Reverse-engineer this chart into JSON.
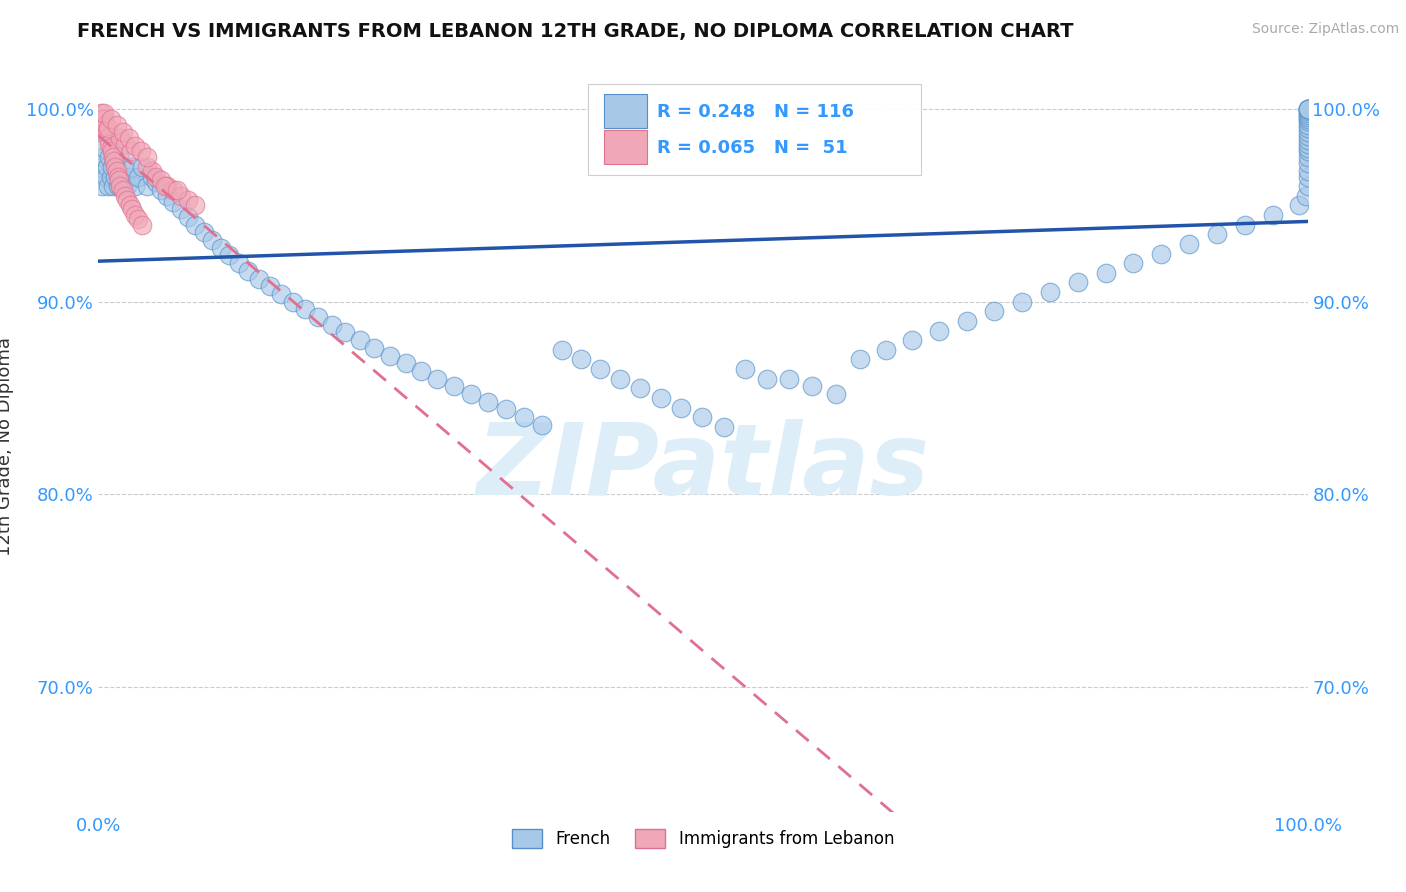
{
  "title": "FRENCH VS IMMIGRANTS FROM LEBANON 12TH GRADE, NO DIPLOMA CORRELATION CHART",
  "source": "Source: ZipAtlas.com",
  "ylabel": "12th Grade, No Diploma",
  "xlim": [
    0.0,
    1.0
  ],
  "ylim": [
    0.635,
    1.015
  ],
  "blue_R": 0.248,
  "blue_N": 116,
  "pink_R": 0.065,
  "pink_N": 51,
  "blue_color": "#a8c8e8",
  "pink_color": "#f0a8b8",
  "blue_edge_color": "#5590c8",
  "pink_edge_color": "#e07090",
  "blue_line_color": "#2255aa",
  "pink_line_color": "#e07090",
  "watermark_color": "#ddeef8",
  "legend_blue_label": "French",
  "legend_pink_label": "Immigrants from Lebanon",
  "blue_x": [
    0.002,
    0.003,
    0.004,
    0.005,
    0.006,
    0.007,
    0.008,
    0.009,
    0.01,
    0.011,
    0.012,
    0.013,
    0.014,
    0.015,
    0.016,
    0.017,
    0.018,
    0.02,
    0.022,
    0.024,
    0.026,
    0.028,
    0.03,
    0.033,
    0.036,
    0.04,
    0.044,
    0.048,
    0.052,
    0.057,
    0.062,
    0.068,
    0.074,
    0.08,
    0.087,
    0.094,
    0.101,
    0.108,
    0.116,
    0.124,
    0.133,
    0.142,
    0.151,
    0.161,
    0.171,
    0.182,
    0.193,
    0.204,
    0.216,
    0.228,
    0.241,
    0.254,
    0.267,
    0.28,
    0.294,
    0.308,
    0.322,
    0.337,
    0.352,
    0.367,
    0.383,
    0.399,
    0.415,
    0.431,
    0.448,
    0.465,
    0.482,
    0.499,
    0.517,
    0.535,
    0.553,
    0.571,
    0.59,
    0.61,
    0.63,
    0.651,
    0.673,
    0.695,
    0.718,
    0.741,
    0.764,
    0.787,
    0.81,
    0.833,
    0.856,
    0.879,
    0.902,
    0.925,
    0.948,
    0.971,
    0.993,
    0.999,
    1.0,
    1.0,
    1.0,
    1.0,
    1.0,
    1.0,
    1.0,
    1.0,
    1.0,
    1.0,
    1.0,
    1.0,
    1.0,
    1.0,
    1.0,
    1.0,
    1.0,
    1.0,
    1.0,
    1.0,
    1.0,
    1.0,
    1.0,
    1.0
  ],
  "blue_y": [
    0.97,
    0.96,
    0.975,
    0.98,
    0.965,
    0.97,
    0.96,
    0.975,
    0.965,
    0.97,
    0.96,
    0.975,
    0.965,
    0.97,
    0.96,
    0.975,
    0.96,
    0.965,
    0.97,
    0.96,
    0.965,
    0.97,
    0.96,
    0.965,
    0.97,
    0.96,
    0.965,
    0.962,
    0.958,
    0.955,
    0.952,
    0.948,
    0.944,
    0.94,
    0.936,
    0.932,
    0.928,
    0.924,
    0.92,
    0.916,
    0.912,
    0.908,
    0.904,
    0.9,
    0.896,
    0.892,
    0.888,
    0.884,
    0.88,
    0.876,
    0.872,
    0.868,
    0.864,
    0.86,
    0.856,
    0.852,
    0.848,
    0.844,
    0.84,
    0.836,
    0.875,
    0.87,
    0.865,
    0.86,
    0.855,
    0.85,
    0.845,
    0.84,
    0.835,
    0.865,
    0.86,
    0.86,
    0.856,
    0.852,
    0.87,
    0.875,
    0.88,
    0.885,
    0.89,
    0.895,
    0.9,
    0.905,
    0.91,
    0.915,
    0.92,
    0.925,
    0.93,
    0.935,
    0.94,
    0.945,
    0.95,
    0.955,
    0.96,
    0.965,
    0.968,
    0.972,
    0.975,
    0.978,
    0.98,
    0.982,
    0.984,
    0.986,
    0.988,
    0.99,
    0.992,
    0.994,
    0.995,
    0.996,
    0.997,
    0.998,
    0.999,
    1.0,
    1.0,
    1.0,
    1.0,
    1.0
  ],
  "pink_x": [
    0.001,
    0.002,
    0.003,
    0.003,
    0.004,
    0.005,
    0.005,
    0.006,
    0.007,
    0.008,
    0.009,
    0.01,
    0.011,
    0.012,
    0.013,
    0.014,
    0.015,
    0.016,
    0.017,
    0.018,
    0.02,
    0.022,
    0.024,
    0.026,
    0.028,
    0.03,
    0.033,
    0.036,
    0.04,
    0.044,
    0.048,
    0.052,
    0.057,
    0.062,
    0.068,
    0.074,
    0.08,
    0.055,
    0.065,
    0.018,
    0.022,
    0.027,
    0.008,
    0.005,
    0.01,
    0.015,
    0.02,
    0.025,
    0.03,
    0.035,
    0.04
  ],
  "pink_y": [
    0.99,
    0.998,
    0.995,
    0.992,
    0.99,
    0.995,
    0.988,
    0.992,
    0.988,
    0.985,
    0.982,
    0.98,
    0.978,
    0.975,
    0.973,
    0.97,
    0.968,
    0.965,
    0.963,
    0.96,
    0.958,
    0.955,
    0.953,
    0.95,
    0.948,
    0.945,
    0.943,
    0.94,
    0.97,
    0.968,
    0.965,
    0.963,
    0.96,
    0.958,
    0.955,
    0.953,
    0.95,
    0.96,
    0.958,
    0.985,
    0.982,
    0.978,
    0.99,
    0.998,
    0.995,
    0.992,
    0.988,
    0.985,
    0.981,
    0.978,
    0.975
  ]
}
